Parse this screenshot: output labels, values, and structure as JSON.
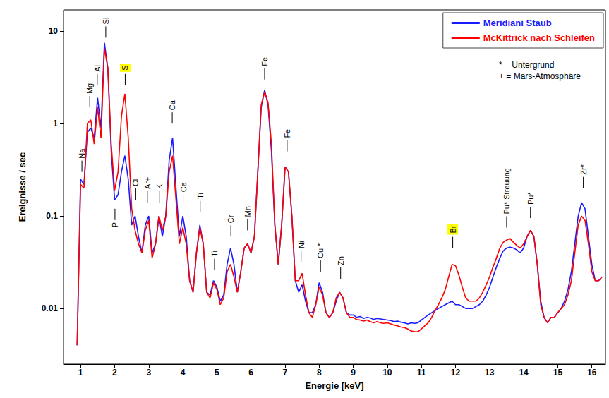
{
  "chart_data": {
    "type": "line",
    "x_label": "Energie [keV]",
    "y_label": "Ereignisse / sec",
    "log": "y",
    "grid": false,
    "legend": "upper right",
    "xlim": [
      0.5,
      16.4
    ],
    "xticks": [
      1,
      2,
      3,
      4,
      5,
      6,
      7,
      8,
      9,
      10,
      11,
      12,
      13,
      14,
      15,
      16
    ],
    "ylim": [
      0.0025,
      17
    ],
    "yticks": [
      0.01,
      0.1,
      1,
      10
    ],
    "notes": [
      "* = Untergrund",
      "+ = Mars-Atmosphäre"
    ],
    "x": [
      0.9,
      1.0,
      1.1,
      1.2,
      1.3,
      1.4,
      1.5,
      1.6,
      1.7,
      1.8,
      1.9,
      2.0,
      2.1,
      2.2,
      2.3,
      2.4,
      2.5,
      2.6,
      2.7,
      2.8,
      2.9,
      3.0,
      3.1,
      3.2,
      3.3,
      3.4,
      3.5,
      3.6,
      3.7,
      3.8,
      3.9,
      4.0,
      4.1,
      4.2,
      4.3,
      4.4,
      4.5,
      4.6,
      4.7,
      4.8,
      4.9,
      5.0,
      5.1,
      5.2,
      5.3,
      5.4,
      5.5,
      5.6,
      5.7,
      5.8,
      5.9,
      6.0,
      6.1,
      6.2,
      6.3,
      6.4,
      6.5,
      6.6,
      6.7,
      6.8,
      6.9,
      7.0,
      7.1,
      7.2,
      7.3,
      7.4,
      7.5,
      7.6,
      7.7,
      7.8,
      7.9,
      8.0,
      8.1,
      8.2,
      8.3,
      8.4,
      8.5,
      8.6,
      8.7,
      8.8,
      8.9,
      9.0,
      9.1,
      9.2,
      9.3,
      9.4,
      9.5,
      9.6,
      9.7,
      9.8,
      9.9,
      10.0,
      10.1,
      10.2,
      10.3,
      10.4,
      10.5,
      10.6,
      10.7,
      10.8,
      10.9,
      11.0,
      11.1,
      11.2,
      11.3,
      11.4,
      11.5,
      11.6,
      11.7,
      11.8,
      11.9,
      12.0,
      12.1,
      12.2,
      12.3,
      12.4,
      12.5,
      12.6,
      12.7,
      12.8,
      12.9,
      13.0,
      13.1,
      13.2,
      13.3,
      13.4,
      13.5,
      13.6,
      13.7,
      13.8,
      13.9,
      14.0,
      14.1,
      14.2,
      14.3,
      14.4,
      14.5,
      14.6,
      14.7,
      14.8,
      14.9,
      15.0,
      15.1,
      15.2,
      15.3,
      15.4,
      15.5,
      15.6,
      15.7,
      15.8,
      15.9,
      16.0,
      16.1,
      16.2,
      16.3
    ],
    "series": [
      {
        "name": "Meridiani Staub",
        "color": "#1a1aff",
        "values": [
          0.004,
          0.25,
          0.22,
          0.8,
          0.9,
          0.7,
          1.9,
          0.9,
          7.5,
          4,
          0.5,
          0.15,
          0.17,
          0.3,
          0.45,
          0.25,
          0.08,
          0.1,
          0.06,
          0.04,
          0.08,
          0.1,
          0.04,
          0.05,
          0.1,
          0.06,
          0.1,
          0.4,
          0.7,
          0.2,
          0.06,
          0.1,
          0.06,
          0.02,
          0.015,
          0.04,
          0.08,
          0.05,
          0.015,
          0.014,
          0.02,
          0.017,
          0.012,
          0.014,
          0.03,
          0.045,
          0.03,
          0.015,
          0.025,
          0.045,
          0.05,
          0.04,
          0.06,
          0.3,
          1.5,
          2.3,
          1.6,
          0.5,
          0.08,
          0.03,
          0.08,
          0.34,
          0.3,
          0.1,
          0.02,
          0.015,
          0.018,
          0.012,
          0.009,
          0.009,
          0.011,
          0.019,
          0.015,
          0.009,
          0.008,
          0.009,
          0.012,
          0.015,
          0.013,
          0.009,
          0.0085,
          0.0085,
          0.008,
          0.0082,
          0.0078,
          0.008,
          0.0079,
          0.0076,
          0.0078,
          0.0077,
          0.0076,
          0.0075,
          0.0074,
          0.0072,
          0.0073,
          0.0071,
          0.007,
          0.0068,
          0.007,
          0.0069,
          0.007,
          0.0075,
          0.008,
          0.0085,
          0.009,
          0.0095,
          0.01,
          0.0105,
          0.011,
          0.0115,
          0.012,
          0.011,
          0.011,
          0.0105,
          0.01,
          0.01,
          0.01,
          0.0105,
          0.011,
          0.012,
          0.014,
          0.017,
          0.022,
          0.028,
          0.035,
          0.042,
          0.045,
          0.046,
          0.045,
          0.043,
          0.04,
          0.045,
          0.06,
          0.07,
          0.06,
          0.03,
          0.012,
          0.008,
          0.007,
          0.008,
          0.008,
          0.009,
          0.01,
          0.012,
          0.016,
          0.025,
          0.05,
          0.1,
          0.14,
          0.12,
          0.06,
          0.03,
          0.02,
          0.02,
          0.022
        ]
      },
      {
        "name": "McKittrick nach Schleifen",
        "color": "#ff0000",
        "values": [
          0.004,
          0.22,
          0.2,
          1.0,
          1.1,
          0.6,
          1.5,
          0.7,
          6.5,
          4,
          0.6,
          0.19,
          0.3,
          1.2,
          2.1,
          0.7,
          0.12,
          0.07,
          0.05,
          0.04,
          0.07,
          0.09,
          0.035,
          0.05,
          0.1,
          0.07,
          0.1,
          0.3,
          0.45,
          0.15,
          0.05,
          0.075,
          0.05,
          0.02,
          0.015,
          0.04,
          0.075,
          0.05,
          0.015,
          0.013,
          0.019,
          0.016,
          0.011,
          0.013,
          0.025,
          0.03,
          0.022,
          0.015,
          0.025,
          0.045,
          0.05,
          0.04,
          0.06,
          0.3,
          1.6,
          2.2,
          1.7,
          0.6,
          0.08,
          0.03,
          0.08,
          0.34,
          0.3,
          0.1,
          0.02,
          0.02,
          0.024,
          0.014,
          0.009,
          0.008,
          0.011,
          0.017,
          0.014,
          0.009,
          0.008,
          0.009,
          0.013,
          0.015,
          0.013,
          0.009,
          0.008,
          0.008,
          0.0076,
          0.0075,
          0.0073,
          0.0075,
          0.0072,
          0.007,
          0.0072,
          0.007,
          0.0069,
          0.007,
          0.0068,
          0.0066,
          0.0065,
          0.0063,
          0.0062,
          0.006,
          0.0057,
          0.0056,
          0.0056,
          0.006,
          0.0065,
          0.007,
          0.008,
          0.0095,
          0.011,
          0.013,
          0.016,
          0.022,
          0.03,
          0.029,
          0.023,
          0.017,
          0.013,
          0.012,
          0.012,
          0.012,
          0.013,
          0.015,
          0.018,
          0.022,
          0.028,
          0.035,
          0.045,
          0.052,
          0.055,
          0.057,
          0.052,
          0.048,
          0.045,
          0.05,
          0.06,
          0.07,
          0.06,
          0.03,
          0.011,
          0.008,
          0.007,
          0.008,
          0.008,
          0.009,
          0.01,
          0.011,
          0.014,
          0.02,
          0.04,
          0.08,
          0.1,
          0.09,
          0.05,
          0.025,
          0.02,
          0.02,
          0.022
        ]
      }
    ],
    "annotations": [
      {
        "text": "Na",
        "x": 1.04,
        "y": 0.3
      },
      {
        "text": "Mg",
        "x": 1.27,
        "y": 1.5
      },
      {
        "text": "Al",
        "x": 1.49,
        "y": 2.6
      },
      {
        "text": "Si",
        "x": 1.74,
        "y": 8.5
      },
      {
        "text": "P",
        "x": 2.01,
        "y": 0.12,
        "position": "below"
      },
      {
        "text": "S",
        "x": 2.31,
        "y": 2.6,
        "color": "#ffff00"
      },
      {
        "text": "Cl",
        "x": 2.62,
        "y": 0.15
      },
      {
        "text": "Ar+",
        "x": 2.96,
        "y": 0.14
      },
      {
        "text": "K",
        "x": 3.31,
        "y": 0.14
      },
      {
        "text": "Ca",
        "x": 3.69,
        "y": 1.0
      },
      {
        "text": "Ca",
        "x": 4.01,
        "y": 0.13
      },
      {
        "text": "Ti",
        "x": 4.51,
        "y": 0.11
      },
      {
        "text": "Ti",
        "x": 4.93,
        "y": 0.026
      },
      {
        "text": "Cr",
        "x": 5.41,
        "y": 0.06
      },
      {
        "text": "Mn",
        "x": 5.9,
        "y": 0.07
      },
      {
        "text": "Fe",
        "x": 6.4,
        "y": 3.0
      },
      {
        "text": "Fe",
        "x": 7.06,
        "y": 0.5
      },
      {
        "text": "Ni",
        "x": 7.47,
        "y": 0.032
      },
      {
        "text": "Cu *",
        "x": 8.04,
        "y": 0.025
      },
      {
        "text": "Zn",
        "x": 8.63,
        "y": 0.021
      },
      {
        "text": "Br",
        "x": 11.92,
        "y": 0.045,
        "color": "#ffff00"
      },
      {
        "text": "Pu* Streuung",
        "x": 13.5,
        "y": 0.075
      },
      {
        "text": "Pu*",
        "x": 14.2,
        "y": 0.095
      },
      {
        "text": "Zr*",
        "x": 15.75,
        "y": 0.2
      }
    ]
  }
}
